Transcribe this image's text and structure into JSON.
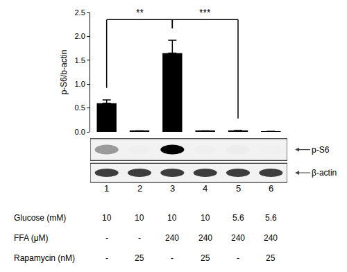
{
  "chart_data": {
    "type": "bar",
    "categories": [
      "1",
      "2",
      "3",
      "4",
      "5",
      "6"
    ],
    "values": [
      0.6,
      0.02,
      1.65,
      0.02,
      0.03,
      0.01
    ],
    "errors": [
      0.07,
      0,
      0.27,
      0,
      0,
      0
    ],
    "color": "#000000",
    "y_label": "p-S6/b-actin",
    "ylim": [
      0,
      2.5
    ],
    "yticks": [
      {
        "value": 0,
        "label": "0.0"
      },
      0.5,
      {
        "value": 1,
        "label": "1.0"
      },
      1.5,
      {
        "value": 2,
        "label": "2.0"
      },
      2.5
    ],
    "grid": false,
    "significance": [
      {
        "from": "1",
        "to": "3",
        "label": "**"
      },
      {
        "from": "3",
        "to": "5",
        "label": "***"
      }
    ],
    "blot_bands": [
      "p-S6",
      "β-actin"
    ],
    "conditions": [
      {
        "label": "Glucose (mM)",
        "values": [
          10,
          10,
          10,
          10,
          5.6,
          5.6
        ]
      },
      {
        "label": "FFA (μM)",
        "values": [
          "-",
          "-",
          240,
          240,
          240,
          240
        ]
      },
      {
        "label": "Rapamycin (nM)",
        "values": [
          "-",
          25,
          "-",
          25,
          "-",
          25
        ]
      }
    ]
  }
}
